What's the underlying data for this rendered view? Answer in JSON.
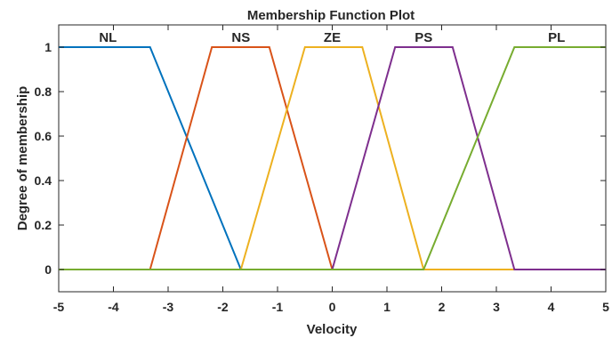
{
  "chart_data": {
    "type": "line",
    "title": "Membership Function Plot",
    "xlabel": "Velocity",
    "ylabel": "Degree of membership",
    "xlim": [
      -5,
      5
    ],
    "ylim": [
      -0.1,
      1.1
    ],
    "xticks": [
      "-5",
      "-4",
      "-3",
      "-2",
      "-1",
      "0",
      "1",
      "2",
      "3",
      "4",
      "5"
    ],
    "yticks": [
      "0",
      "0.2",
      "0.4",
      "0.6",
      "0.8",
      "1"
    ],
    "grid": false,
    "series": [
      {
        "name": "NL",
        "color": "#0072BD",
        "x": [
          -5,
          -3.33,
          -1.67,
          5
        ],
        "y": [
          1,
          1,
          0,
          0
        ]
      },
      {
        "name": "NS",
        "color": "#D95319",
        "x": [
          -5,
          -3.33,
          -2.2,
          -1.15,
          0,
          5
        ],
        "y": [
          0,
          0,
          1,
          1,
          0,
          0
        ]
      },
      {
        "name": "ZE",
        "color": "#EDB120",
        "x": [
          -5,
          -1.67,
          -0.5,
          0.55,
          1.67,
          5
        ],
        "y": [
          0,
          0,
          1,
          1,
          0,
          0
        ]
      },
      {
        "name": "PS",
        "color": "#7E2F8E",
        "x": [
          -5,
          0,
          1.15,
          2.2,
          3.33,
          5
        ],
        "y": [
          0,
          0,
          1,
          1,
          0,
          0
        ]
      },
      {
        "name": "PL",
        "color": "#77AC30",
        "x": [
          -5,
          1.67,
          3.33,
          5
        ],
        "y": [
          0,
          0,
          1,
          1
        ]
      }
    ],
    "mf_labels": [
      {
        "text": "NL",
        "x": -4.1
      },
      {
        "text": "NS",
        "x": -1.67
      },
      {
        "text": "ZE",
        "x": 0
      },
      {
        "text": "PS",
        "x": 1.67
      },
      {
        "text": "PL",
        "x": 4.1
      }
    ]
  }
}
